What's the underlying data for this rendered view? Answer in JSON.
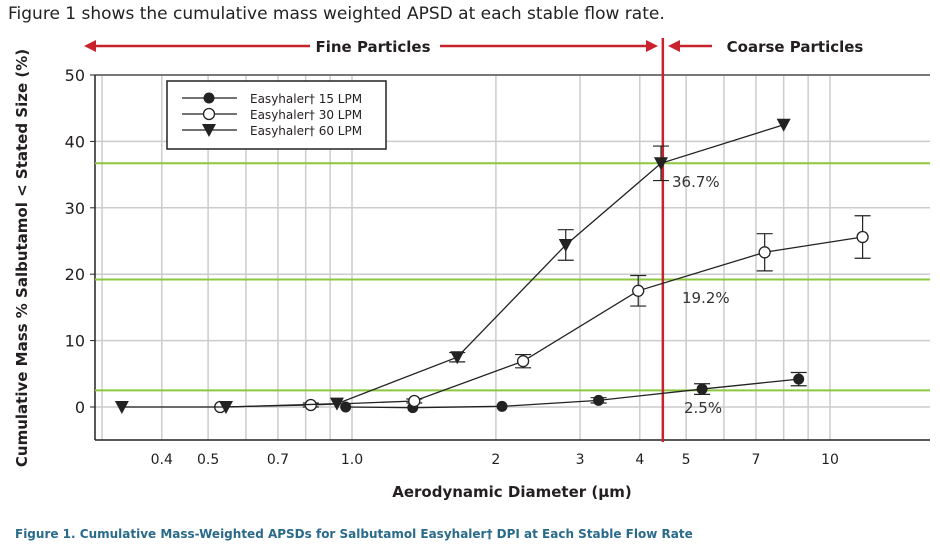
{
  "intro": "Figure 1 shows the cumulative mass weighted APSD at each stable flow rate.",
  "caption": "Figure 1. Cumulative Mass-Weighted APSDs for Salbutamol Easyhaler† DPI at Each Stable Flow Rate",
  "colors": {
    "red": "#c8232c",
    "green": "#8dc63f",
    "grid": "#cccccc",
    "ink": "#231f20"
  },
  "chart_data": {
    "type": "line",
    "xscale": "log",
    "xlabel": "Aerodynamic Diameter (µm)",
    "ylabel": "Cumulative Mass % Salbutamol < Stated Size (%)",
    "xlim": [
      0.29,
      16.2
    ],
    "ylim": [
      -5,
      50
    ],
    "xticks": [
      0.4,
      0.5,
      0.7,
      1.0,
      2,
      3,
      4,
      5,
      7,
      10
    ],
    "xtick_labels": [
      "0.4",
      "0.5",
      "0.7",
      "1.0",
      "2",
      "3",
      "4",
      "5",
      "7",
      "10"
    ],
    "yticks": [
      0,
      10,
      20,
      30,
      40,
      50
    ],
    "ytick_labels": [
      "0",
      "10",
      "20",
      "30",
      "40",
      "50"
    ],
    "fine_label": "Fine Particles",
    "coarse_label": "Coarse Particles",
    "cutoff_x": 4.47,
    "reference_lines": [
      {
        "y": 36.7,
        "label": "36.7%"
      },
      {
        "y": 19.2,
        "label": "19.2%"
      },
      {
        "y": 2.5,
        "label": "2.5%"
      }
    ],
    "legend_position": "top-left",
    "series": [
      {
        "name": "Easyhaler† 15 LPM",
        "marker": "filled-circle",
        "x": [
          0.97,
          1.34,
          2.06,
          3.28,
          5.4,
          8.6
        ],
        "y": [
          0,
          -0.1,
          0.1,
          1.0,
          2.7,
          4.2
        ],
        "err": [
          0,
          0,
          0,
          0.4,
          0.8,
          1.0
        ]
      },
      {
        "name": "Easyhaler† 30 LPM",
        "marker": "open-circle",
        "x": [
          0.53,
          0.82,
          1.35,
          2.28,
          3.97,
          7.3,
          11.7
        ],
        "y": [
          0,
          0.3,
          0.9,
          6.9,
          17.5,
          23.3,
          25.6
        ],
        "err": [
          0,
          0.3,
          0.3,
          1.0,
          2.3,
          2.8,
          3.2
        ]
      },
      {
        "name": "Easyhaler† 60 LPM",
        "marker": "triangle-down",
        "x": [
          0.33,
          0.545,
          0.93,
          1.66,
          2.8,
          4.43,
          8.0
        ],
        "y": [
          0,
          0,
          0.5,
          7.5,
          24.4,
          36.7,
          42.5
        ],
        "err": [
          0,
          0,
          0,
          0.7,
          2.3,
          2.6,
          0
        ]
      }
    ]
  }
}
